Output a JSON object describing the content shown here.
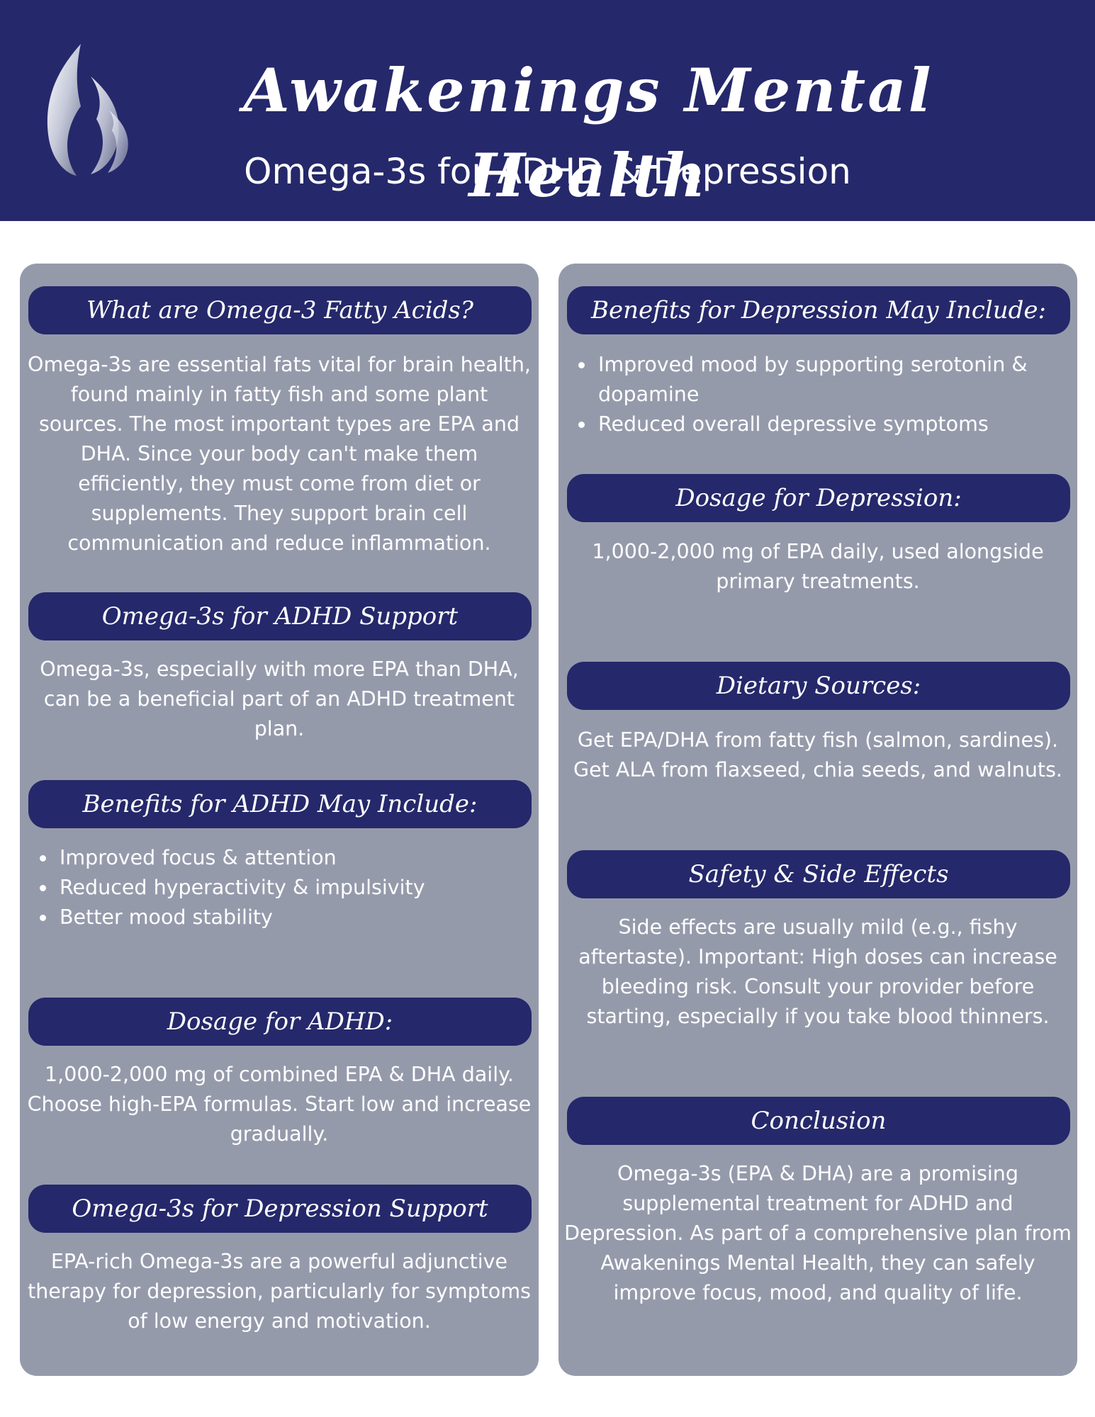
{
  "header": {
    "brand": "Awakenings Mental Health",
    "subtitle": "Omega-3s for ADHD & Depression"
  },
  "left": {
    "s1": {
      "title": "What are Omega-3 Fatty Acids?",
      "text": "Omega-3s are essential fats vital for brain health, found mainly in fatty fish and some plant sources. The most important types are EPA and DHA. Since your body can't make them efficiently, they must come from diet or supplements. They support brain cell communication and reduce inflammation."
    },
    "s2": {
      "title": "Omega-3s for ADHD Support",
      "text": "Omega-3s, especially with more EPA than DHA, can be a beneficial part of an ADHD treatment plan."
    },
    "s3": {
      "title": "Benefits for ADHD May Include:",
      "items": [
        "Improved focus & attention",
        "Reduced hyperactivity & impulsivity",
        "Better mood stability"
      ]
    },
    "s4": {
      "title": "Dosage for ADHD:",
      "text": "1,000-2,000 mg of combined EPA & DHA daily. Choose high-EPA formulas. Start low and increase gradually."
    },
    "s5": {
      "title": "Omega-3s for Depression Support",
      "text": "EPA-rich Omega-3s are a powerful adjunctive therapy for depression, particularly for symptoms of low energy and motivation."
    }
  },
  "right": {
    "s1": {
      "title": "Benefits for Depression May Include:",
      "items": [
        "Improved mood by supporting serotonin & dopamine",
        "Reduced overall depressive symptoms"
      ]
    },
    "s2": {
      "title": "Dosage for Depression:",
      "text": "1,000-2,000 mg of EPA daily, used alongside primary treatments."
    },
    "s3": {
      "title": "Dietary Sources:",
      "text": "Get EPA/DHA from fatty fish (salmon, sardines). Get ALA from flaxseed, chia seeds, and walnuts."
    },
    "s4": {
      "title": "Safety & Side Effects",
      "text": "Side effects are usually mild (e.g., fishy aftertaste). Important: High doses can increase bleeding risk. Consult your provider before starting, especially if you take blood thinners."
    },
    "s5": {
      "title": "Conclusion",
      "text": "Omega-3s (EPA & DHA) are a promising supplemental treatment for ADHD and Depression. As part of a comprehensive plan from Awakenings Mental Health, they can safely improve focus, mood, and quality of life."
    }
  },
  "colors": {
    "navy": "#25286a",
    "panel": "#959aab",
    "text": "#ffffff"
  }
}
